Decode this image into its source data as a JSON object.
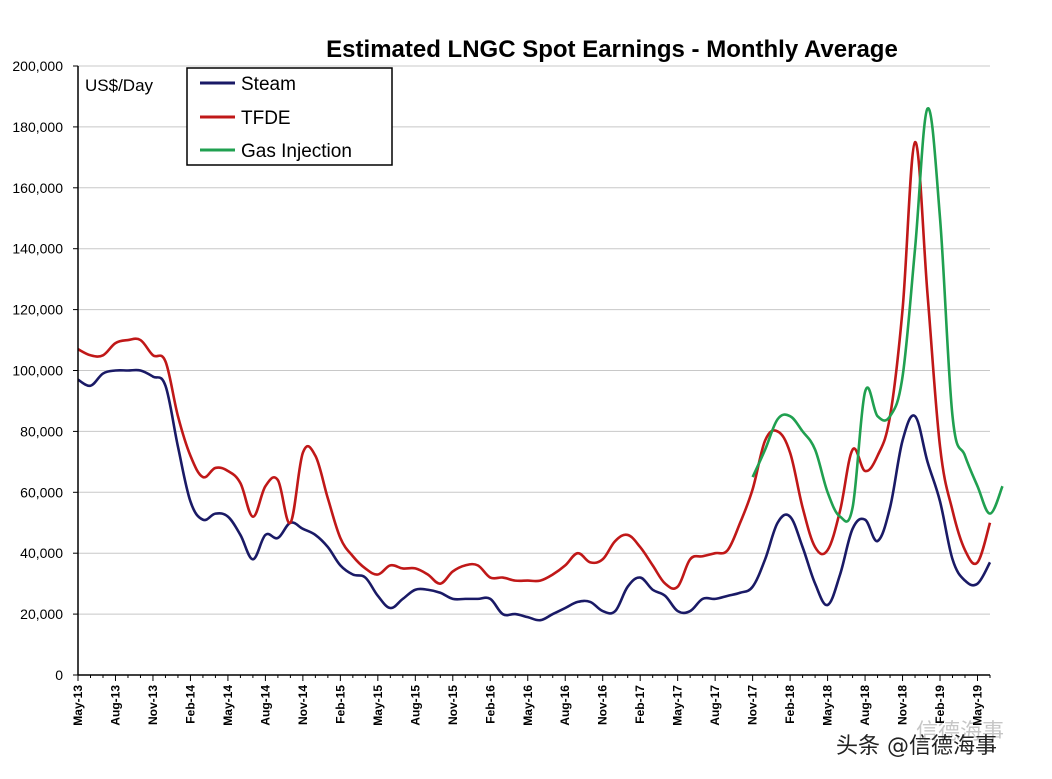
{
  "chart_data": {
    "type": "line",
    "title": "Estimated LNGC Spot Earnings - Monthly Average",
    "ylabel": "US$/Day",
    "ylim": [
      0,
      200000
    ],
    "yticks": [
      0,
      20000,
      40000,
      60000,
      80000,
      100000,
      120000,
      140000,
      160000,
      180000,
      200000
    ],
    "ytick_labels": [
      "0",
      "20,000",
      "40,000",
      "60,000",
      "80,000",
      "100,000",
      "120,000",
      "140,000",
      "160,000",
      "180,000",
      "200,000"
    ],
    "x_start": "May-13",
    "x_count": 74,
    "xtick_labels": [
      "May-13",
      "Aug-13",
      "Nov-13",
      "Feb-14",
      "May-14",
      "Aug-14",
      "Nov-14",
      "Feb-15",
      "May-15",
      "Aug-15",
      "Nov-15",
      "Feb-16",
      "May-16",
      "Aug-16",
      "Nov-16",
      "Feb-17",
      "May-17",
      "Aug-17",
      "Nov-17",
      "Feb-18",
      "May-18",
      "Aug-18",
      "Nov-18",
      "Feb-19",
      "May-19"
    ],
    "legend_position": "top-left",
    "grid": true,
    "series": [
      {
        "name": "Steam",
        "color": "#1a1a66",
        "start_index": 0,
        "values": [
          97000,
          95000,
          99000,
          100000,
          100000,
          100000,
          98000,
          95000,
          75000,
          57000,
          51000,
          53000,
          52000,
          46000,
          38000,
          46000,
          45000,
          50000,
          48000,
          46000,
          42000,
          36000,
          33000,
          32000,
          26000,
          22000,
          25000,
          28000,
          28000,
          27000,
          25000,
          25000,
          25000,
          25000,
          20000,
          20000,
          19000,
          18000,
          20000,
          22000,
          24000,
          24000,
          21000,
          21000,
          29000,
          32000,
          28000,
          26000,
          21000,
          21000,
          25000,
          25000,
          26000,
          27000,
          29000,
          38000,
          50000,
          52000,
          42000,
          30000,
          23000,
          33000,
          48000,
          51000,
          44000,
          55000,
          77000,
          85000,
          70000,
          57000,
          38000,
          31000,
          30000,
          37000
        ]
      },
      {
        "name": "TFDE",
        "color": "#c01818",
        "start_index": 0,
        "values": [
          107000,
          105000,
          105000,
          109000,
          110000,
          110000,
          105000,
          103000,
          85000,
          72000,
          65000,
          68000,
          67000,
          63000,
          52000,
          62000,
          64000,
          50000,
          73000,
          72000,
          58000,
          45000,
          39000,
          35000,
          33000,
          36000,
          35000,
          35000,
          33000,
          30000,
          34000,
          36000,
          36000,
          32000,
          32000,
          31000,
          31000,
          31000,
          33000,
          36000,
          40000,
          37000,
          38000,
          44000,
          46000,
          42000,
          36000,
          30000,
          29000,
          38000,
          39000,
          40000,
          41000,
          50000,
          61000,
          77000,
          80000,
          73000,
          55000,
          42000,
          41000,
          54000,
          74000,
          67000,
          72000,
          85000,
          120000,
          175000,
          125000,
          75000,
          54000,
          41000,
          37000,
          50000
        ]
      },
      {
        "name": "Gas Injection",
        "color": "#20a050",
        "start_index": 54,
        "values": [
          65000,
          74000,
          84000,
          85000,
          80000,
          74000,
          60000,
          52000,
          55000,
          93000,
          85000,
          85000,
          98000,
          140000,
          186000,
          150000,
          85000,
          72000,
          62000,
          53000,
          62000
        ]
      }
    ]
  },
  "watermark": {
    "text": "头条 @信德海事",
    "top_text": "信德海事"
  }
}
